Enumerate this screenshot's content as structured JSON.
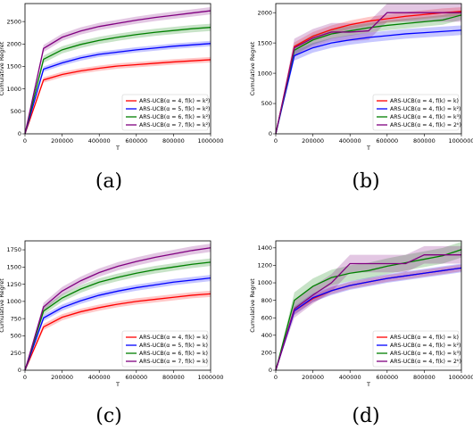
{
  "figure": {
    "panels": [
      {
        "caption": "(a)"
      },
      {
        "caption": "(b)"
      },
      {
        "caption": "(c)"
      },
      {
        "caption": "(d)"
      }
    ]
  },
  "chart_data": [
    {
      "type": "line",
      "caption": "(a)",
      "xlabel": "T",
      "ylabel": "Cumulative Regret",
      "xlim": [
        0,
        1000000
      ],
      "ylim": [
        0,
        2900
      ],
      "xticks": [
        0,
        200000,
        400000,
        600000,
        800000,
        1000000
      ],
      "yticks": [
        0,
        500,
        1000,
        1500,
        2000,
        2500
      ],
      "legend": "bottom-right",
      "grid": false,
      "x": [
        0,
        100000,
        200000,
        300000,
        400000,
        500000,
        600000,
        700000,
        800000,
        900000,
        1000000
      ],
      "series": [
        {
          "name": "ARS-UCB(α = 4, f(k) = k²)",
          "color": "#ff0000",
          "band": 60,
          "values": [
            0,
            1200,
            1320,
            1400,
            1460,
            1510,
            1540,
            1570,
            1600,
            1625,
            1650
          ]
        },
        {
          "name": "ARS-UCB(α = 5, f(k) = k²)",
          "color": "#0000ff",
          "band": 60,
          "values": [
            0,
            1440,
            1580,
            1690,
            1770,
            1820,
            1870,
            1910,
            1950,
            1980,
            2010
          ]
        },
        {
          "name": "ARS-UCB(α = 6, f(k) = k²)",
          "color": "#008000",
          "band": 80,
          "values": [
            0,
            1660,
            1870,
            1990,
            2080,
            2150,
            2210,
            2260,
            2300,
            2340,
            2370
          ]
        },
        {
          "name": "ARS-UCB(α = 7, f(k) = k²)",
          "color": "#800080",
          "band": 80,
          "values": [
            0,
            1900,
            2150,
            2290,
            2390,
            2460,
            2530,
            2590,
            2640,
            2690,
            2740
          ]
        }
      ]
    },
    {
      "type": "line",
      "caption": "(b)",
      "xlabel": "T",
      "ylabel": "Cumulative Regret",
      "xlim": [
        0,
        1000000
      ],
      "ylim": [
        0,
        2150
      ],
      "xticks": [
        0,
        200000,
        400000,
        600000,
        800000,
        1000000
      ],
      "yticks": [
        0,
        500,
        1000,
        1500,
        2000
      ],
      "legend": "bottom-right",
      "grid": false,
      "x": [
        0,
        100000,
        200000,
        300000,
        400000,
        500000,
        600000,
        700000,
        800000,
        900000,
        1000000
      ],
      "series": [
        {
          "name": "ARS-UCB(α = 4, f(k) = k)",
          "color": "#ff0000",
          "band": 70,
          "values": [
            0,
            1440,
            1610,
            1720,
            1800,
            1860,
            1900,
            1940,
            1970,
            2000,
            2020
          ]
        },
        {
          "name": "ARS-UCB(α = 4, f(k) = k²)",
          "color": "#0000ff",
          "band": 80,
          "values": [
            0,
            1290,
            1420,
            1500,
            1550,
            1590,
            1620,
            1650,
            1670,
            1690,
            1710
          ]
        },
        {
          "name": "ARS-UCB(α = 4, f(k) = k³)",
          "color": "#008000",
          "band": 80,
          "values": [
            0,
            1380,
            1550,
            1650,
            1700,
            1750,
            1790,
            1820,
            1850,
            1880,
            1960
          ]
        },
        {
          "name": "ARS-UCB(α = 4, f(k) = 2ᵏ)",
          "color": "#800080",
          "band": 150,
          "values": [
            0,
            1420,
            1580,
            1680,
            1680,
            1700,
            2000,
            2000,
            2000,
            2000,
            2000
          ]
        }
      ]
    },
    {
      "type": "line",
      "caption": "(c)",
      "xlabel": "T",
      "ylabel": "Cumulative Regret",
      "xlim": [
        0,
        1000000
      ],
      "ylim": [
        0,
        1880
      ],
      "xticks": [
        0,
        200000,
        400000,
        600000,
        800000,
        1000000
      ],
      "yticks": [
        0,
        250,
        500,
        750,
        1000,
        1250,
        1500,
        1750
      ],
      "legend": "bottom-right",
      "grid": false,
      "x": [
        0,
        100000,
        200000,
        300000,
        400000,
        500000,
        600000,
        700000,
        800000,
        900000,
        1000000
      ],
      "series": [
        {
          "name": "ARS-UCB(α = 4, f(k) = k)",
          "color": "#ff0000",
          "band": 45,
          "values": [
            0,
            630,
            770,
            850,
            910,
            960,
            1000,
            1030,
            1060,
            1090,
            1110
          ]
        },
        {
          "name": "ARS-UCB(α = 5, f(k) = k)",
          "color": "#0000ff",
          "band": 45,
          "values": [
            0,
            760,
            910,
            1010,
            1090,
            1150,
            1200,
            1240,
            1280,
            1310,
            1340
          ]
        },
        {
          "name": "ARS-UCB(α = 6, f(k) = k)",
          "color": "#008000",
          "band": 55,
          "values": [
            0,
            860,
            1050,
            1180,
            1280,
            1350,
            1410,
            1460,
            1500,
            1540,
            1570
          ]
        },
        {
          "name": "ARS-UCB(α = 7, f(k) = k)",
          "color": "#800080",
          "band": 60,
          "values": [
            0,
            920,
            1150,
            1300,
            1420,
            1510,
            1580,
            1640,
            1690,
            1740,
            1780
          ]
        }
      ]
    },
    {
      "type": "line",
      "caption": "(d)",
      "xlabel": "T",
      "ylabel": "Cumulative Regret",
      "xlim": [
        0,
        1000000
      ],
      "ylim": [
        0,
        1480
      ],
      "xticks": [
        0,
        200000,
        400000,
        600000,
        800000,
        1000000
      ],
      "yticks": [
        0,
        200,
        400,
        600,
        800,
        1000,
        1200,
        1400
      ],
      "legend": "bottom-right",
      "grid": false,
      "x": [
        0,
        100000,
        200000,
        300000,
        400000,
        500000,
        600000,
        700000,
        800000,
        900000,
        1000000
      ],
      "series": [
        {
          "name": "ARS-UCB(α = 4, f(k) = k)",
          "color": "#ff0000",
          "band": 40,
          "values": [
            0,
            680,
            820,
            910,
            970,
            1010,
            1050,
            1080,
            1110,
            1140,
            1170
          ]
        },
        {
          "name": "ARS-UCB(α = 4, f(k) = k²)",
          "color": "#0000ff",
          "band": 50,
          "values": [
            0,
            680,
            830,
            910,
            970,
            1010,
            1050,
            1080,
            1110,
            1140,
            1170
          ]
        },
        {
          "name": "ARS-UCB(α = 4, f(k) = k³)",
          "color": "#008000",
          "band": 90,
          "values": [
            0,
            800,
            960,
            1060,
            1110,
            1140,
            1190,
            1230,
            1270,
            1310,
            1380
          ]
        },
        {
          "name": "ARS-UCB(α = 4, f(k) = 2ᵏ)",
          "color": "#800080",
          "band": 100,
          "values": [
            0,
            700,
            860,
            1000,
            1220,
            1220,
            1220,
            1220,
            1320,
            1320,
            1320
          ]
        }
      ]
    }
  ]
}
